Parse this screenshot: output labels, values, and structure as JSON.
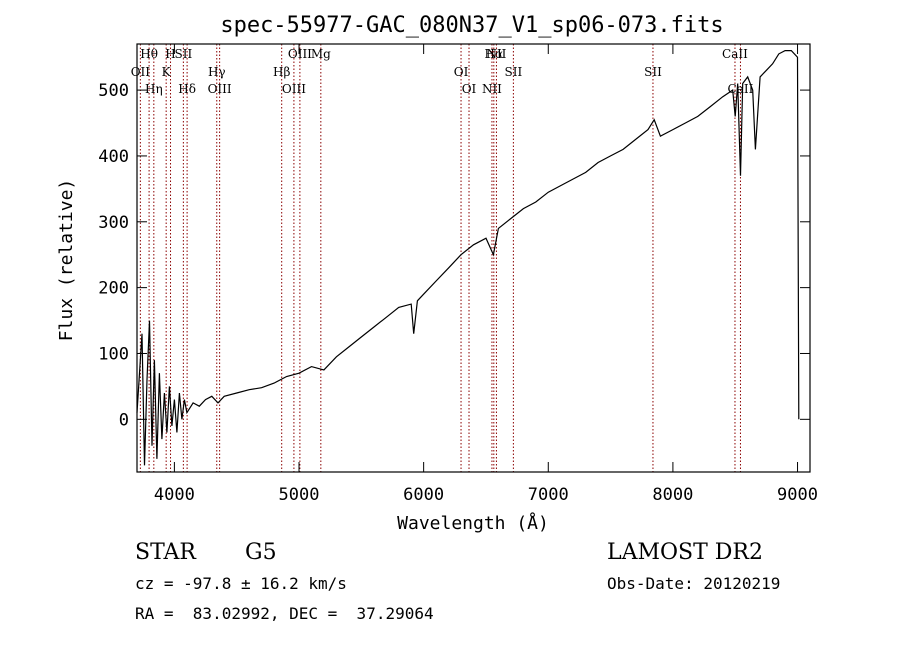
{
  "chart_data": {
    "type": "line",
    "title": "spec-55977-GAC_080N37_V1_sp06-073.fits",
    "xlabel": "Wavelength (Å)",
    "ylabel": "Flux (relative)",
    "xlim": [
      3700,
      9100
    ],
    "ylim": [
      -80,
      570
    ],
    "x_ticks": [
      4000,
      5000,
      6000,
      7000,
      8000,
      9000
    ],
    "y_ticks": [
      0,
      100,
      200,
      300,
      400,
      500
    ],
    "grid": false,
    "series": [
      {
        "points": [
          [
            3700,
            10
          ],
          [
            3740,
            130
          ],
          [
            3760,
            -70
          ],
          [
            3780,
            60
          ],
          [
            3800,
            150
          ],
          [
            3820,
            -40
          ],
          [
            3840,
            90
          ],
          [
            3860,
            -60
          ],
          [
            3880,
            70
          ],
          [
            3900,
            -30
          ],
          [
            3920,
            40
          ],
          [
            3940,
            -20
          ],
          [
            3960,
            50
          ],
          [
            3980,
            -10
          ],
          [
            4000,
            30
          ],
          [
            4020,
            -20
          ],
          [
            4040,
            40
          ],
          [
            4060,
            0
          ],
          [
            4080,
            30
          ],
          [
            4100,
            10
          ],
          [
            4150,
            25
          ],
          [
            4200,
            20
          ],
          [
            4250,
            30
          ],
          [
            4300,
            35
          ],
          [
            4350,
            25
          ],
          [
            4400,
            35
          ],
          [
            4500,
            40
          ],
          [
            4600,
            45
          ],
          [
            4700,
            48
          ],
          [
            4800,
            55
          ],
          [
            4900,
            65
          ],
          [
            5000,
            70
          ],
          [
            5100,
            80
          ],
          [
            5200,
            75
          ],
          [
            5300,
            95
          ],
          [
            5400,
            110
          ],
          [
            5500,
            125
          ],
          [
            5600,
            140
          ],
          [
            5700,
            155
          ],
          [
            5800,
            170
          ],
          [
            5900,
            175
          ],
          [
            5920,
            130
          ],
          [
            5950,
            180
          ],
          [
            6000,
            190
          ],
          [
            6100,
            210
          ],
          [
            6200,
            230
          ],
          [
            6300,
            250
          ],
          [
            6400,
            265
          ],
          [
            6500,
            275
          ],
          [
            6560,
            250
          ],
          [
            6600,
            290
          ],
          [
            6700,
            305
          ],
          [
            6800,
            320
          ],
          [
            6900,
            330
          ],
          [
            7000,
            345
          ],
          [
            7100,
            355
          ],
          [
            7200,
            365
          ],
          [
            7300,
            375
          ],
          [
            7400,
            390
          ],
          [
            7500,
            400
          ],
          [
            7600,
            410
          ],
          [
            7700,
            425
          ],
          [
            7800,
            440
          ],
          [
            7850,
            455
          ],
          [
            7900,
            430
          ],
          [
            8000,
            440
          ],
          [
            8100,
            450
          ],
          [
            8200,
            460
          ],
          [
            8300,
            475
          ],
          [
            8400,
            490
          ],
          [
            8480,
            500
          ],
          [
            8500,
            460
          ],
          [
            8520,
            510
          ],
          [
            8542,
            370
          ],
          [
            8560,
            510
          ],
          [
            8600,
            520
          ],
          [
            8640,
            500
          ],
          [
            8662,
            410
          ],
          [
            8700,
            520
          ],
          [
            8750,
            530
          ],
          [
            8800,
            540
          ],
          [
            8850,
            555
          ],
          [
            8900,
            560
          ],
          [
            8950,
            560
          ],
          [
            9000,
            550
          ],
          [
            9010,
            0
          ]
        ]
      }
    ],
    "lines": [
      {
        "label": "Hθ",
        "x": 3797,
        "color": "#8b0000"
      },
      {
        "label": "OII",
        "x": 3727,
        "color": "#8b0000"
      },
      {
        "label": "Hη",
        "x": 3835,
        "color": "#8b0000"
      },
      {
        "label": "H",
        "x": 3969,
        "color": "#8b0000"
      },
      {
        "label": "K",
        "x": 3934,
        "color": "#8b0000"
      },
      {
        "label": "Hδ",
        "x": 4102,
        "color": "#8b0000"
      },
      {
        "label": "SII",
        "x": 4072,
        "color": "#8b0000"
      },
      {
        "label": "Hγ",
        "x": 4340,
        "color": "#8b0000"
      },
      {
        "label": "OIII",
        "x": 4363,
        "color": "#8b0000"
      },
      {
        "label": "OIII",
        "x": 5007,
        "color": "#8b0000"
      },
      {
        "label": "Hβ",
        "x": 4861,
        "color": "#8b0000"
      },
      {
        "label": "OIII",
        "x": 4959,
        "color": "#8b0000"
      },
      {
        "label": "Mg",
        "x": 5175,
        "color": "#8b0000"
      },
      {
        "label": "OI",
        "x": 6300,
        "color": "#8b0000"
      },
      {
        "label": "OI",
        "x": 6364,
        "color": "#8b0000"
      },
      {
        "label": "Hα",
        "x": 6563,
        "color": "#8b0000"
      },
      {
        "label": "SII",
        "x": 6720,
        "color": "#8b0000"
      },
      {
        "label": "NII",
        "x": 6548,
        "color": "#8b0000"
      },
      {
        "label": "NII",
        "x": 6584,
        "color": "#8b0000"
      },
      {
        "label": "SII",
        "x": 7840,
        "color": "#8b0000"
      },
      {
        "label": "CaII",
        "x": 8542,
        "color": "#8b0000"
      },
      {
        "label": "CaII",
        "x": 8498,
        "color": "#8b0000"
      }
    ]
  },
  "info": {
    "object_class": "STAR",
    "subclass": "G5",
    "survey": "LAMOST DR2",
    "cz": "cz = -97.8 ± 16.2 km/s",
    "obs_date": "Obs-Date: 20120219",
    "coords": "RA =  83.02992, DEC =  37.29064"
  }
}
